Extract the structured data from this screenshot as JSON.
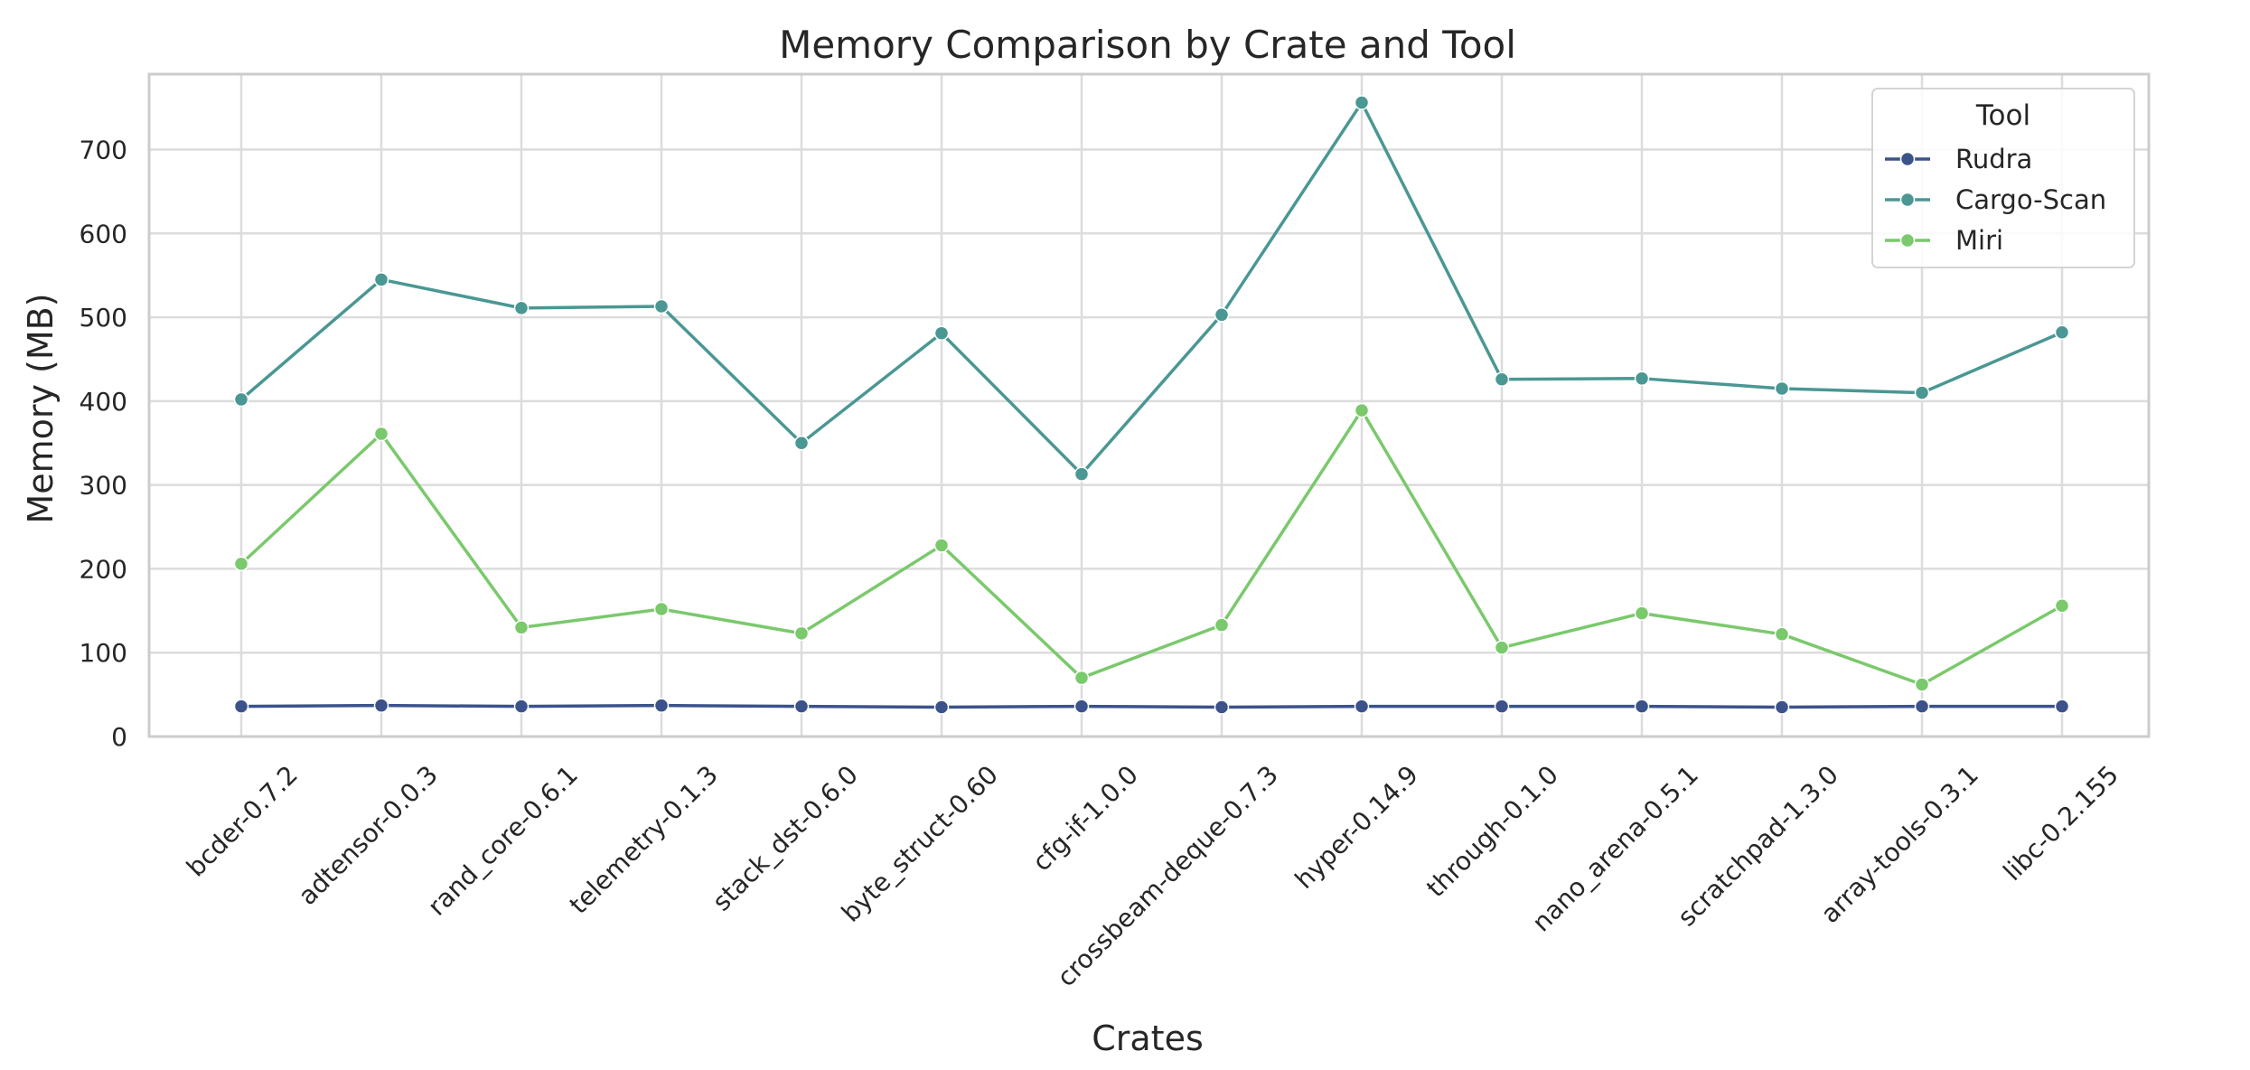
{
  "chart_data": {
    "type": "line",
    "title": "Memory Comparison by Crate and Tool",
    "xlabel": "Crates",
    "ylabel": "Memory (MB)",
    "categories": [
      "bcder-0.7.2",
      "adtensor-0.0.3",
      "rand_core-0.6.1",
      "telemetry-0.1.3",
      "stack_dst-0.6.0",
      "byte_struct-0.60",
      "cfg-if-1.0.0",
      "crossbeam-deque-0.7.3",
      "hyper-0.14.9",
      "through-0.1.0",
      "nano_arena-0.5.1",
      "scratchpad-1.3.0",
      "array-tools-0.3.1",
      "libc-0.2.155"
    ],
    "series": [
      {
        "name": "Rudra",
        "color": "#3b528b",
        "values": [
          36,
          37,
          36,
          37,
          36,
          35,
          36,
          35,
          36,
          36,
          36,
          35,
          36,
          36
        ]
      },
      {
        "name": "Cargo-Scan",
        "color": "#4a9793",
        "values": [
          402,
          545,
          511,
          513,
          350,
          481,
          313,
          503,
          756,
          426,
          427,
          415,
          410,
          482
        ]
      },
      {
        "name": "Miri",
        "color": "#7ac96c",
        "values": [
          206,
          361,
          130,
          152,
          123,
          228,
          70,
          133,
          389,
          106,
          147,
          122,
          62,
          156
        ]
      }
    ],
    "yticks": [
      0,
      100,
      200,
      300,
      400,
      500,
      600,
      700
    ],
    "ylim": [
      0,
      790
    ],
    "grid": true,
    "legend": {
      "title": "Tool",
      "placement": "top-right"
    }
  }
}
